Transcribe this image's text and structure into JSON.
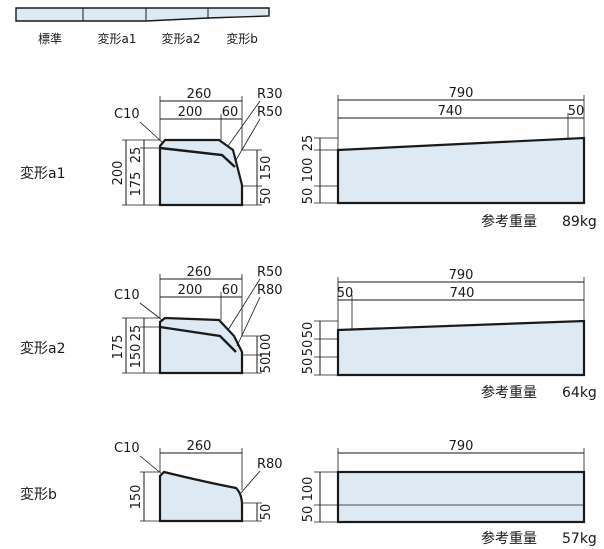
{
  "legend": {
    "items": [
      "標準",
      "変形a1",
      "変形a2",
      "変形b"
    ],
    "fill_color": "#dde9f3"
  },
  "sections": [
    {
      "label": "変形a1",
      "cross": {
        "c": "C10",
        "total_w": "260",
        "w1": "200",
        "w2": "60",
        "r1": "R30",
        "r2": "R50",
        "h_total": "200",
        "h_a": "25",
        "h_b": "175",
        "h_right_top": "150",
        "h_right_bot": "50"
      },
      "side": {
        "total_len": "790",
        "len_a": "740",
        "len_b": "50",
        "h_top": "25",
        "h_mid": "100",
        "h_bot": "50"
      },
      "weight": {
        "label": "参考重量",
        "value": "89kg"
      }
    },
    {
      "label": "変形a2",
      "cross": {
        "c": "C10",
        "total_w": "260",
        "w1": "200",
        "w2": "60",
        "r1": "R50",
        "r2": "R80",
        "h_total": "175",
        "h_a": "25",
        "h_b": "150",
        "h_right_top": "100",
        "h_right_bot": "50"
      },
      "side": {
        "total_len": "790",
        "len_a": "50",
        "len_b": "740",
        "h_top": "50",
        "h_mid": "50",
        "h_bot": "50"
      },
      "weight": {
        "label": "参考重量",
        "value": "64kg"
      }
    },
    {
      "label": "変形b",
      "cross": {
        "c": "C10",
        "total_w": "260",
        "r2": "R80",
        "h_total": "150",
        "h_right_bot": "50"
      },
      "side": {
        "total_len": "790",
        "h_top": "100",
        "h_bot": "50"
      },
      "weight": {
        "label": "参考重量",
        "value": "57kg"
      }
    }
  ]
}
